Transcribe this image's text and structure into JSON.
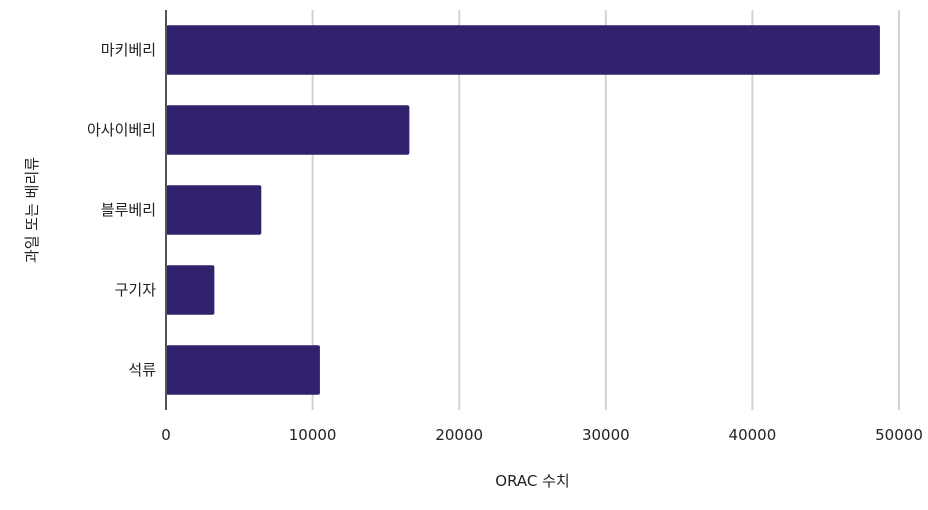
{
  "chart_data": {
    "type": "bar",
    "orientation": "horizontal",
    "categories": [
      "마키베리",
      "아사이베리",
      "블루베리",
      "구기자",
      "석류"
    ],
    "values": [
      48700,
      16600,
      6500,
      3300,
      10500
    ],
    "xlabel": "ORAC 수치",
    "ylabel": "과일 또는 베리류",
    "xlim": [
      0,
      50000
    ],
    "xticks": [
      0,
      10000,
      20000,
      30000,
      40000,
      50000
    ],
    "grid": "vertical",
    "bar_color": "#32226e",
    "legend": "none"
  }
}
